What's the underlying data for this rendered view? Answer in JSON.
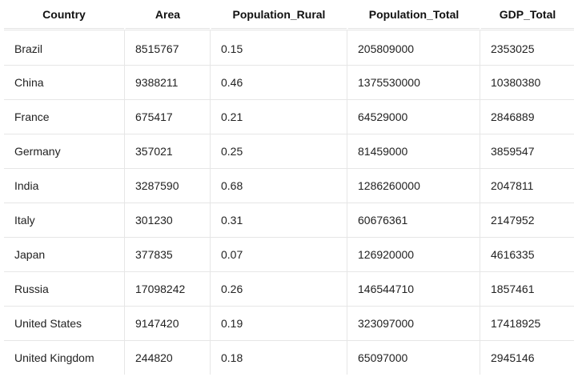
{
  "table": {
    "columns": [
      "Country",
      "Area",
      "Population_Rural",
      "Population_Total",
      "GDP_Total"
    ],
    "rows": [
      [
        "Brazil",
        "8515767",
        "0.15",
        "205809000",
        "2353025"
      ],
      [
        "China",
        "9388211",
        "0.46",
        "1375530000",
        "10380380"
      ],
      [
        "France",
        "675417",
        "0.21",
        "64529000",
        "2846889"
      ],
      [
        "Germany",
        "357021",
        "0.25",
        "81459000",
        "3859547"
      ],
      [
        "India",
        "3287590",
        "0.68",
        "1286260000",
        "2047811"
      ],
      [
        "Italy",
        "301230",
        "0.31",
        "60676361",
        "2147952"
      ],
      [
        "Japan",
        "377835",
        "0.07",
        "126920000",
        "4616335"
      ],
      [
        "Russia",
        "17098242",
        "0.26",
        "146544710",
        "1857461"
      ],
      [
        "United States",
        "9147420",
        "0.19",
        "323097000",
        "17418925"
      ],
      [
        "United Kingdom",
        "244820",
        "0.18",
        "65097000",
        "2945146"
      ]
    ]
  }
}
